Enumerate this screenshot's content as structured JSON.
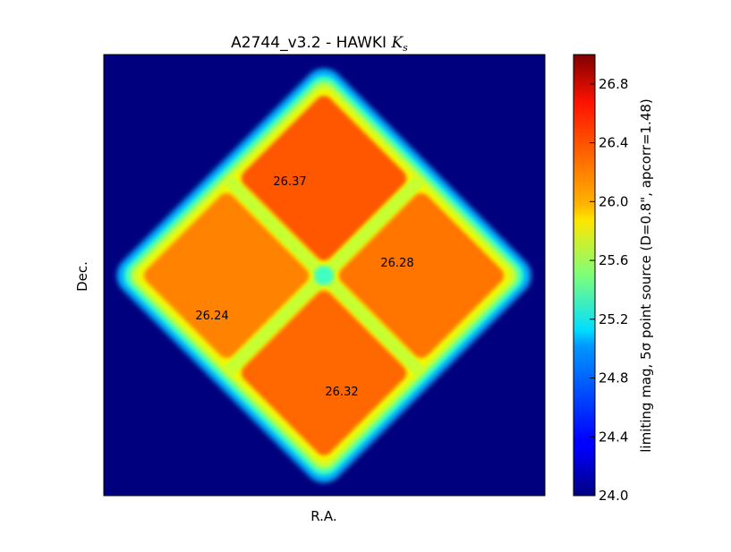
{
  "chart_data": {
    "type": "heatmap",
    "title": "A2744_v3.2 - HAWKI",
    "title_symbol": "K",
    "title_symbol_sub": "s",
    "xlabel": "R.A.",
    "ylabel": "Dec.",
    "colorbar_label": "limiting mag, 5σ point source (D=0.8\", apcorr=1.48)",
    "colorbar_range": [
      24.0,
      27.0
    ],
    "colorbar_ticks": [
      "24.0",
      "24.4",
      "24.8",
      "25.2",
      "25.6",
      "26.0",
      "26.4",
      "26.8"
    ],
    "colormap": "jet",
    "background_value": 24.0,
    "quadrants": [
      {
        "name": "top",
        "label": "26.37",
        "value": 26.37
      },
      {
        "name": "right",
        "label": "26.28",
        "value": 26.28
      },
      {
        "name": "left",
        "label": "26.24",
        "value": 26.24
      },
      {
        "name": "bottom",
        "label": "26.32",
        "value": 26.32
      }
    ]
  }
}
